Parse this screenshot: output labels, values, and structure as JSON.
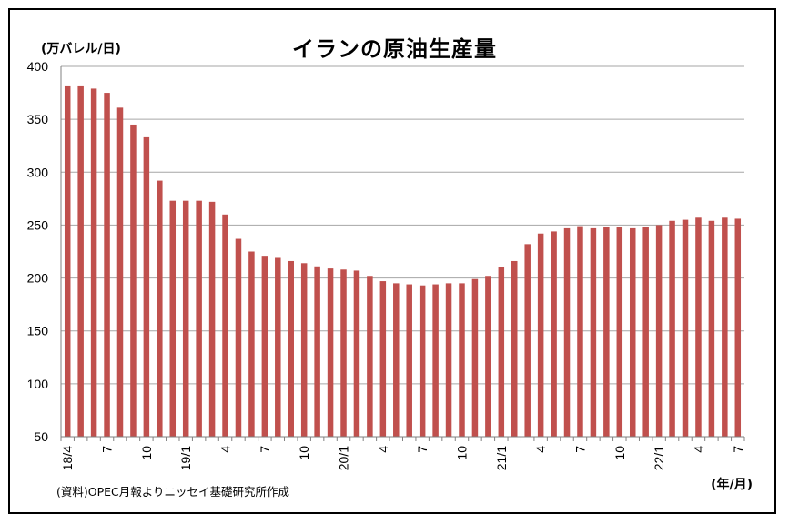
{
  "chart_data": {
    "type": "bar",
    "title": "イランの原油生産量",
    "ylabel": "(万バレル/日)",
    "xlabel": "(年/月)",
    "source": "(資料)OPEC月報よりニッセイ基礎研究所作成",
    "ylim": [
      50,
      400
    ],
    "yticks": [
      50,
      100,
      150,
      200,
      250,
      300,
      350,
      400
    ],
    "grid": true,
    "bar_color": "#c0504d",
    "categories": [
      "18/4",
      "18/5",
      "18/6",
      "18/7",
      "18/8",
      "18/9",
      "18/10",
      "18/11",
      "18/12",
      "19/1",
      "19/2",
      "19/3",
      "19/4",
      "19/5",
      "19/6",
      "19/7",
      "19/8",
      "19/9",
      "19/10",
      "19/11",
      "19/12",
      "20/1",
      "20/2",
      "20/3",
      "20/4",
      "20/5",
      "20/6",
      "20/7",
      "20/8",
      "20/9",
      "20/10",
      "20/11",
      "20/12",
      "21/1",
      "21/2",
      "21/3",
      "21/4",
      "21/5",
      "21/6",
      "21/7",
      "21/8",
      "21/9",
      "21/10",
      "21/11",
      "21/12",
      "22/1",
      "22/2",
      "22/3",
      "22/4",
      "22/5",
      "22/6",
      "22/7"
    ],
    "tick_labels": [
      "18/4",
      "",
      "",
      "7",
      "",
      "",
      "10",
      "",
      "",
      "19/1",
      "",
      "",
      "4",
      "",
      "",
      "7",
      "",
      "",
      "10",
      "",
      "",
      "20/1",
      "",
      "",
      "4",
      "",
      "",
      "7",
      "",
      "",
      "10",
      "",
      "",
      "21/1",
      "",
      "",
      "4",
      "",
      "",
      "7",
      "",
      "",
      "10",
      "",
      "",
      "22/1",
      "",
      "",
      "4",
      "",
      "",
      "7"
    ],
    "values": [
      382,
      382,
      379,
      375,
      361,
      345,
      333,
      292,
      273,
      273,
      273,
      272,
      260,
      237,
      225,
      221,
      219,
      216,
      214,
      211,
      209,
      208,
      207,
      202,
      197,
      195,
      194,
      193,
      194,
      195,
      195,
      199,
      202,
      210,
      216,
      232,
      242,
      244,
      247,
      249,
      247,
      248,
      248,
      247,
      248,
      250,
      254,
      255,
      257,
      254,
      257,
      256
    ]
  }
}
